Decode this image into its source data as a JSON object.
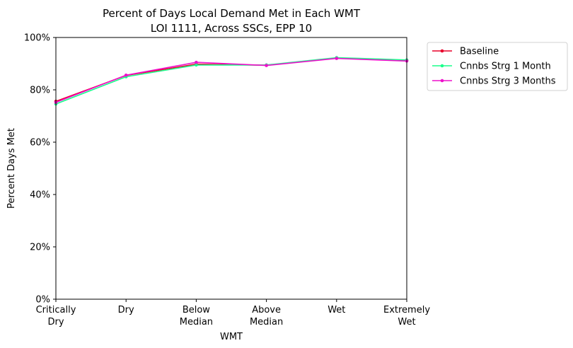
{
  "chart_data": {
    "type": "line",
    "title_line1": "Percent of Days Local Demand Met in Each WMT",
    "title_line2": "LOI 1111, Across SSCs, EPP 10",
    "xlabel": "WMT",
    "ylabel": "Percent Days Met",
    "categories": [
      [
        "Critically",
        "Dry"
      ],
      [
        "Dry"
      ],
      [
        "Below",
        "Median"
      ],
      [
        "Above",
        "Median"
      ],
      [
        "Wet"
      ],
      [
        "Extremely",
        "Wet"
      ]
    ],
    "ylim": [
      0,
      100
    ],
    "yticks": [
      0,
      20,
      40,
      60,
      80,
      100
    ],
    "ytick_labels": [
      "0%",
      "20%",
      "40%",
      "60%",
      "80%",
      "100%"
    ],
    "grid": false,
    "legend_position": "outside top-right",
    "series": [
      {
        "name": "Baseline",
        "color": "#e8002a",
        "values": [
          75.6,
          85.5,
          89.8,
          89.4,
          92.1,
          91.2
        ]
      },
      {
        "name": "Cnnbs Strg 1 Month",
        "color": "#1aff8c",
        "values": [
          74.6,
          85.0,
          89.5,
          89.5,
          92.3,
          91.4
        ]
      },
      {
        "name": "Cnnbs Strg 3 Months",
        "color": "#ee10cc",
        "values": [
          75.2,
          85.6,
          90.5,
          89.3,
          92.0,
          91.0
        ]
      }
    ]
  }
}
